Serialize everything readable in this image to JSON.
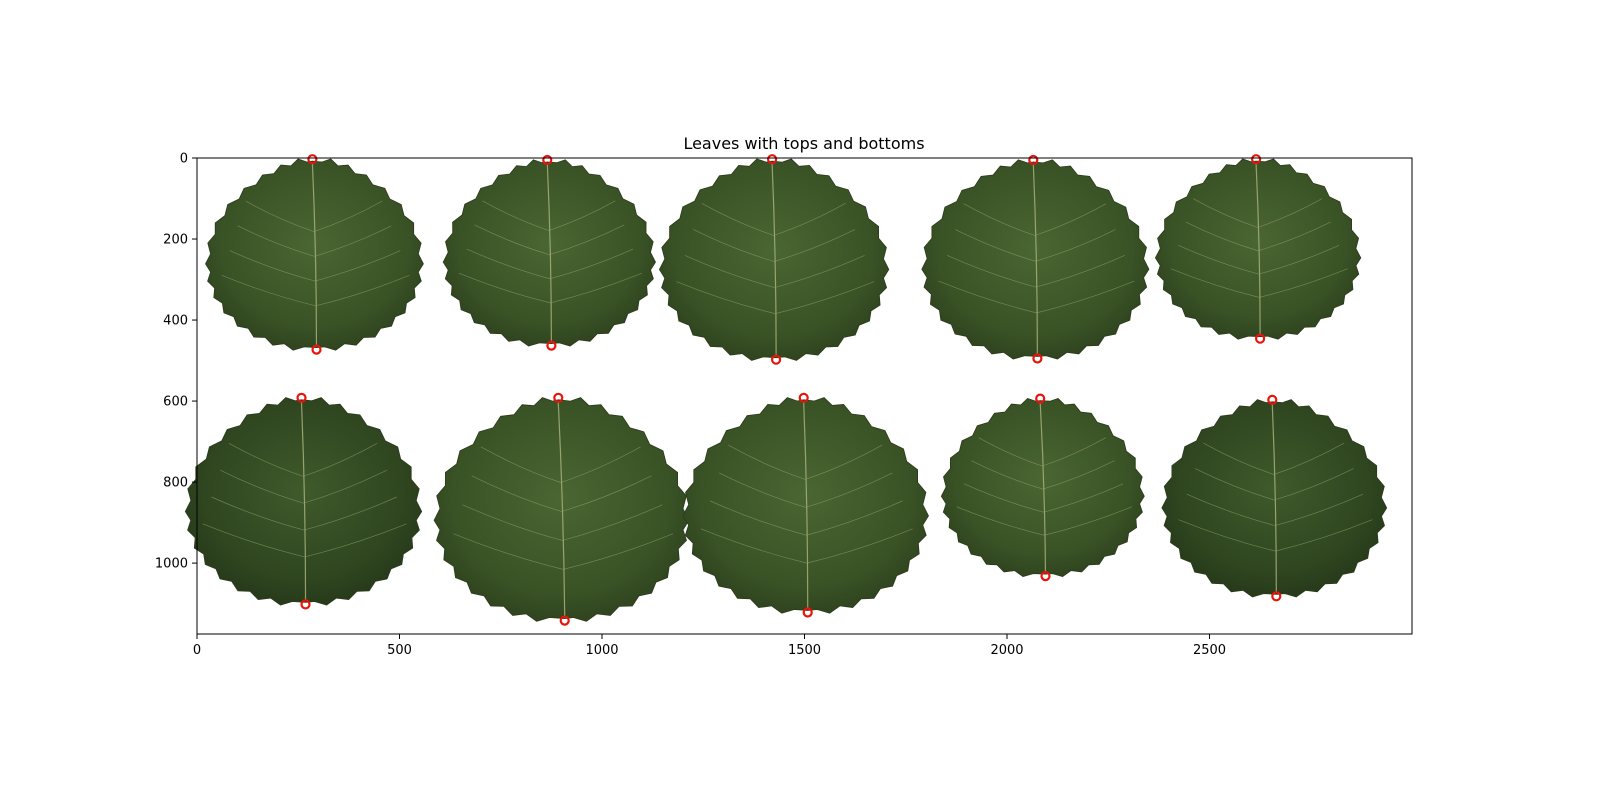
{
  "chart_data": {
    "type": "scatter",
    "title": "Leaves with tops and bottoms",
    "xlabel": "",
    "ylabel": "",
    "xlim": [
      0,
      3000
    ],
    "ylim": [
      1175,
      0
    ],
    "y_inverted": true,
    "grid": false,
    "legend": "none",
    "xticks": [
      0,
      500,
      1000,
      1500,
      2000,
      2500
    ],
    "yticks": [
      0,
      200,
      400,
      600,
      800,
      1000
    ],
    "background_image": "ten aspen leaves arranged in two rows of five",
    "marker": {
      "shape": "ring",
      "color": "#e8140c"
    },
    "leaves": [
      {
        "id": 1,
        "top": [
          285,
          3
        ],
        "bottom": [
          295,
          473
        ]
      },
      {
        "id": 2,
        "top": [
          865,
          5
        ],
        "bottom": [
          875,
          463
        ]
      },
      {
        "id": 3,
        "top": [
          1420,
          3
        ],
        "bottom": [
          1430,
          498
        ]
      },
      {
        "id": 4,
        "top": [
          2065,
          5
        ],
        "bottom": [
          2075,
          495
        ]
      },
      {
        "id": 5,
        "top": [
          2615,
          3
        ],
        "bottom": [
          2625,
          446
        ]
      },
      {
        "id": 6,
        "top": [
          258,
          592
        ],
        "bottom": [
          268,
          1102
        ]
      },
      {
        "id": 7,
        "top": [
          892,
          592
        ],
        "bottom": [
          908,
          1142
        ]
      },
      {
        "id": 8,
        "top": [
          1498,
          592
        ],
        "bottom": [
          1508,
          1122
        ]
      },
      {
        "id": 9,
        "top": [
          2082,
          594
        ],
        "bottom": [
          2095,
          1032
        ]
      },
      {
        "id": 10,
        "top": [
          2655,
          597
        ],
        "bottom": [
          2665,
          1082
        ]
      }
    ]
  },
  "colors": {
    "leaf_base": "#3f5a2a",
    "leaf_dark": "#2f4420",
    "leaf_vein": "#a8b07a",
    "marker": "#e8140c"
  }
}
